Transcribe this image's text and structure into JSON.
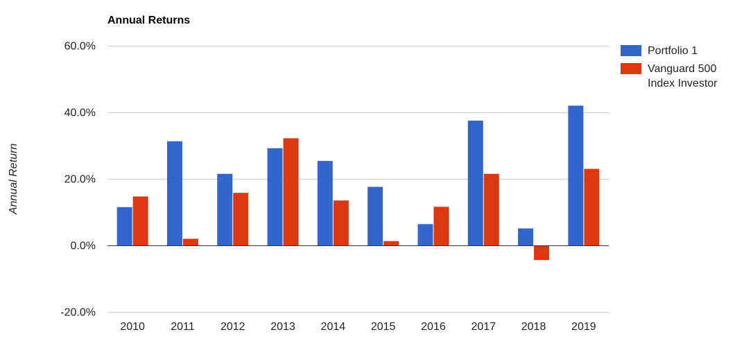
{
  "chart_data": {
    "type": "bar",
    "title": "Annual Returns",
    "xlabel": "",
    "ylabel": "Annual Return",
    "categories": [
      "2010",
      "2011",
      "2012",
      "2013",
      "2014",
      "2015",
      "2016",
      "2017",
      "2018",
      "2019"
    ],
    "series": [
      {
        "name": "Portfolio 1",
        "color": "#3366cc",
        "values": [
          11.5,
          31.3,
          21.5,
          29.2,
          25.4,
          17.6,
          6.4,
          37.5,
          5.1,
          42.0
        ]
      },
      {
        "name_lines": [
          "Vanguard 500",
          "Index Investor"
        ],
        "color": "#dc3912",
        "values": [
          14.7,
          2.0,
          15.8,
          32.2,
          13.5,
          1.3,
          11.6,
          21.5,
          -4.4,
          23.0
        ]
      }
    ],
    "ylim": [
      -20,
      60
    ],
    "yticks": [
      -20,
      0,
      20,
      40,
      60
    ],
    "ytick_labels": [
      "-20.0%",
      "0.0%",
      "20.0%",
      "40.0%",
      "60.0%"
    ],
    "grid": true,
    "legend_position": "right"
  }
}
